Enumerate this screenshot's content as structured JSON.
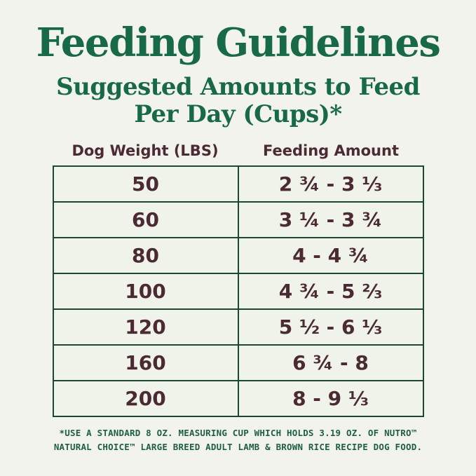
{
  "chart_data": {
    "type": "table",
    "title": "Feeding Guidelines",
    "subtitle_line1": "Suggested Amounts to Feed",
    "subtitle_line2": "Per Day (Cups)*",
    "columns": [
      "Dog Weight (LBS)",
      "Feeding Amount"
    ],
    "rows": [
      {
        "weight": "50",
        "amount": "2 ¾ - 3 ⅓"
      },
      {
        "weight": "60",
        "amount": "3 ¼ - 3 ¾"
      },
      {
        "weight": "80",
        "amount": "4 - 4 ¾"
      },
      {
        "weight": "100",
        "amount": "4 ¾ - 5 ⅔"
      },
      {
        "weight": "120",
        "amount": "5 ½ - 6 ⅓"
      },
      {
        "weight": "160",
        "amount": "6 ¾ - 8"
      },
      {
        "weight": "200",
        "amount": "8 - 9 ⅓"
      }
    ],
    "footnote_line1": "*USE A STANDARD 8 OZ. MEASURING CUP WHICH HOLDS 3.19 OZ. OF NUTRO™",
    "footnote_line2": "NATURAL CHOICE™ LARGE BREED ADULT LAMB & BROWN RICE RECIPE DOG FOOD.",
    "layout_hints": {
      "grid": "full borders, 2 columns x 7 rows",
      "columns_split": "50/50"
    },
    "colors": {
      "heading_green": "#186945",
      "footnote_green": "#1e5f43",
      "table_text_maroon": "#4b2a33",
      "table_border_green": "#1c4731",
      "page_background": "#f2f3ec",
      "cell_background": "#f0f3ea"
    }
  }
}
